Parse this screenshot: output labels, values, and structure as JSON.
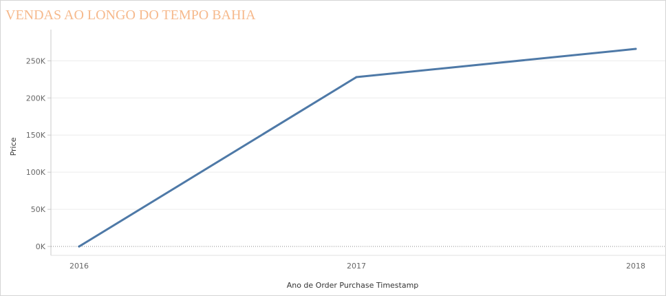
{
  "chart_data": {
    "type": "line",
    "title": "VENDAS AO LONGO DO TEMPO BAHIA",
    "xlabel": "Ano de Order Purchase Timestamp",
    "ylabel": "Price",
    "x": [
      "2016",
      "2017",
      "2018"
    ],
    "series": [
      {
        "values": [
          0,
          228000,
          266000
        ],
        "color": "#4e79a7"
      }
    ],
    "y_ticks": [
      {
        "value": 0,
        "label": "0K"
      },
      {
        "value": 50000,
        "label": "50K"
      },
      {
        "value": 100000,
        "label": "100K"
      },
      {
        "value": 150000,
        "label": "150K"
      },
      {
        "value": 200000,
        "label": "200K"
      },
      {
        "value": 250000,
        "label": "250K"
      }
    ],
    "ylim": [
      -12000,
      292000
    ],
    "grid": true,
    "title_color": "#f6b98c"
  }
}
